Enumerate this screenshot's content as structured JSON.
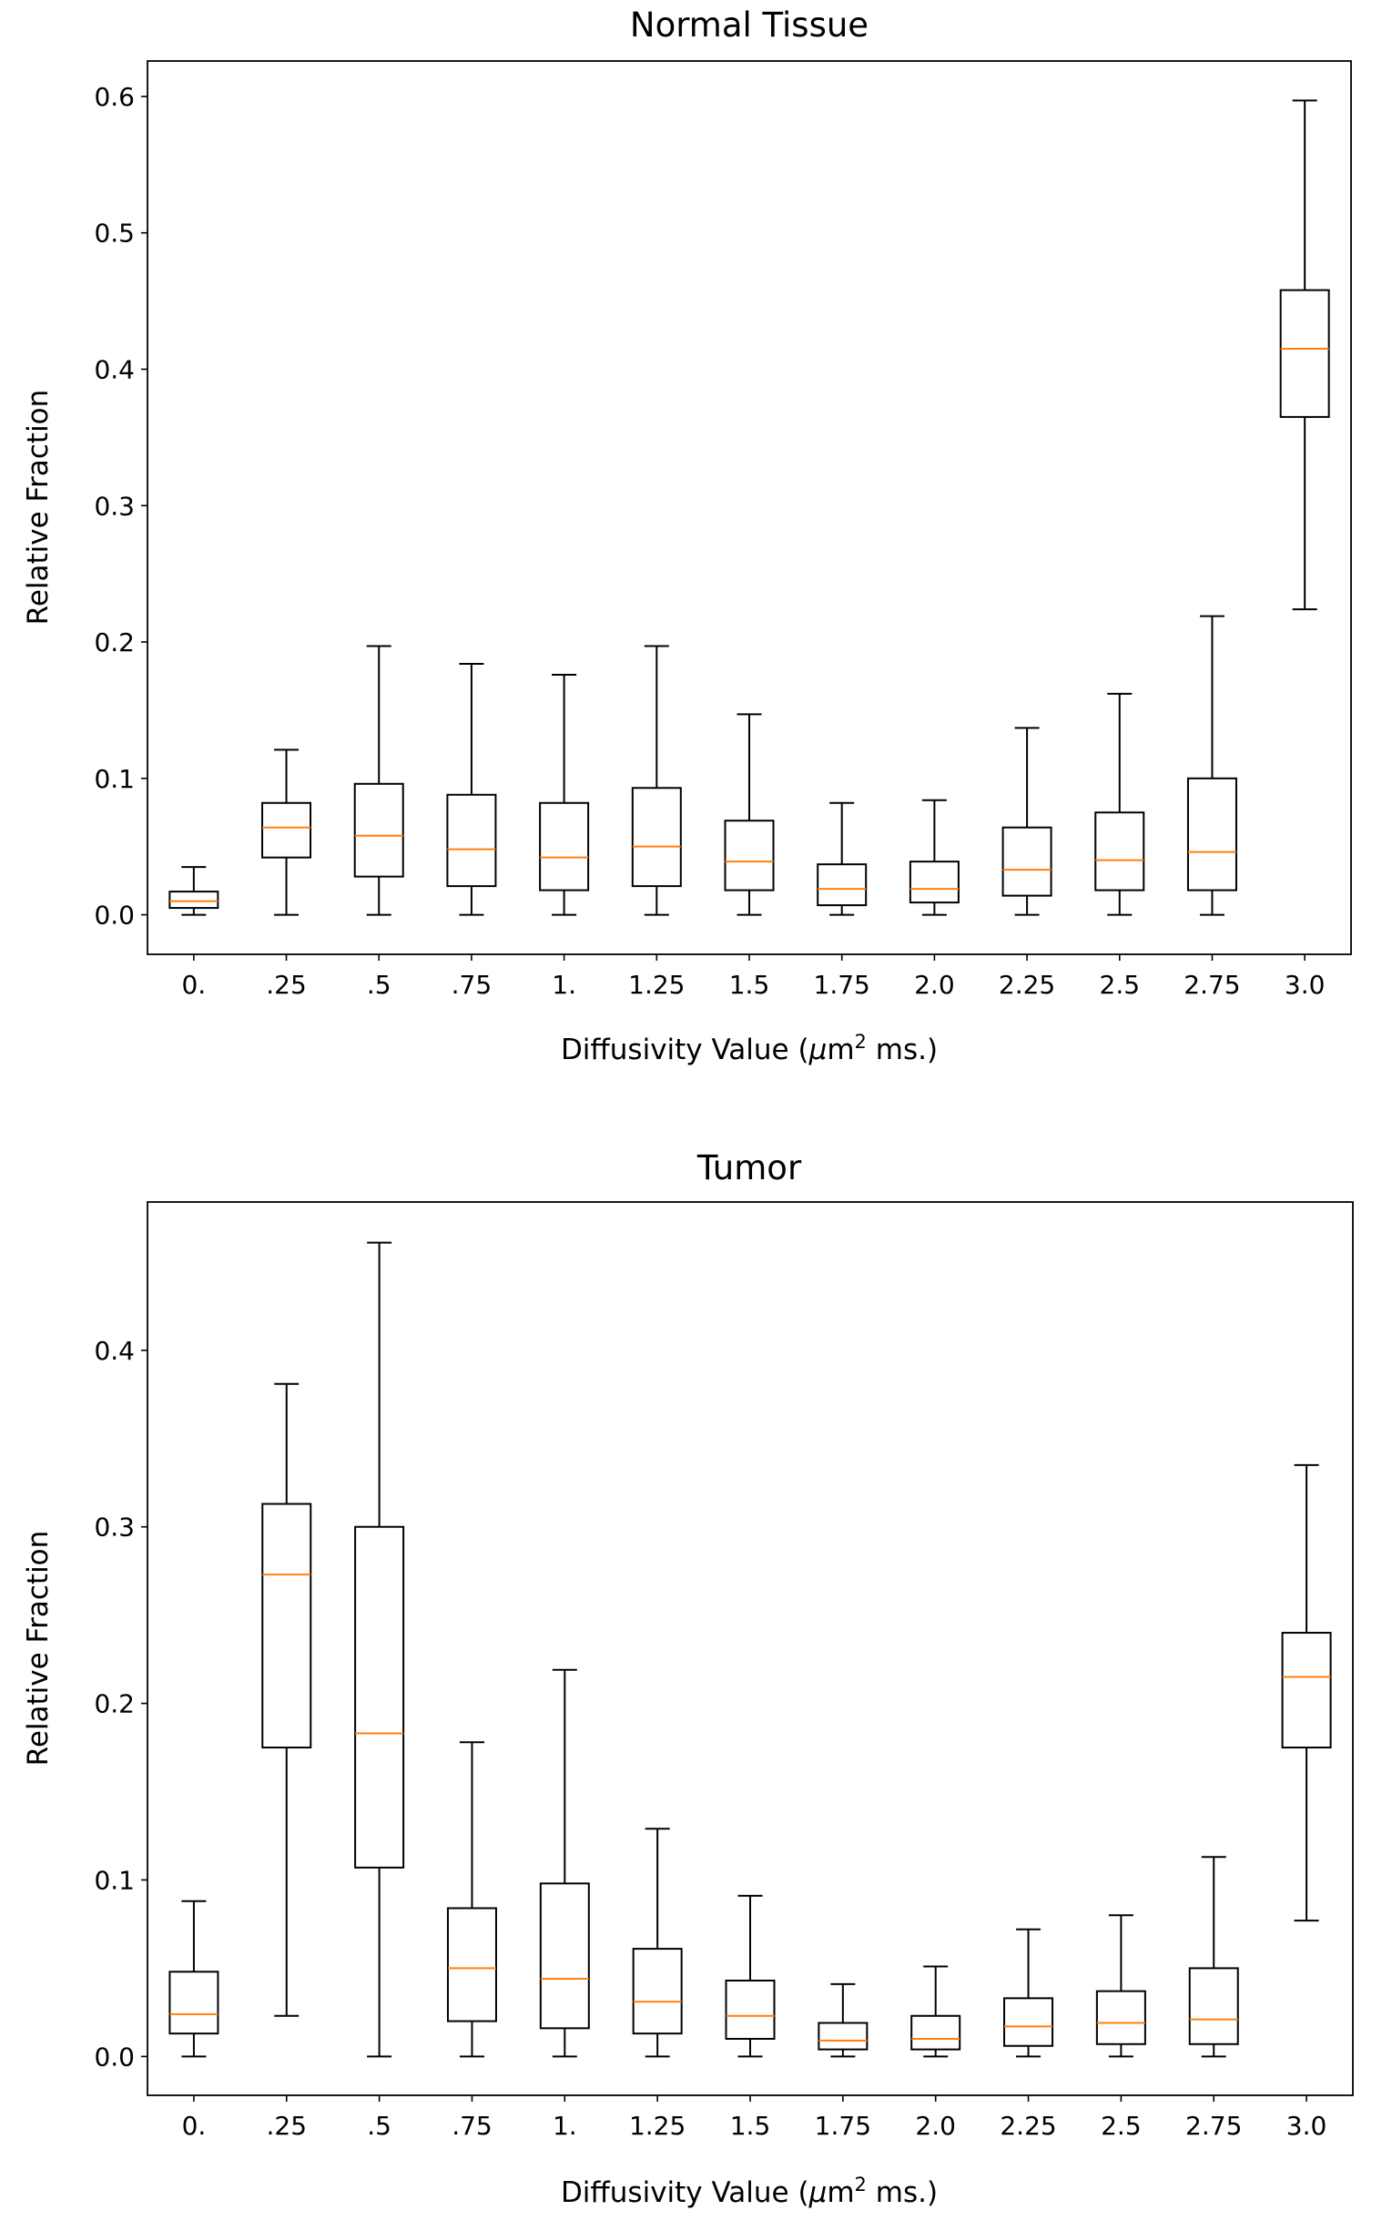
{
  "chart_data": [
    {
      "type": "box",
      "title": "Normal Tissue",
      "xlabel": "Diffusivity Value (μm² ms.)",
      "xlabel_parts": {
        "pre": "Diffusivity Value (",
        "mu": "μ",
        "m": "m",
        "sup": "2",
        "post": " ms.)"
      },
      "ylabel": "Relative Fraction",
      "ylim": [
        -0.029,
        0.626
      ],
      "yticks": [
        "0.0",
        "0.1",
        "0.2",
        "0.3",
        "0.4",
        "0.5",
        "0.6"
      ],
      "ytick_values": [
        0,
        0.1,
        0.2,
        0.3,
        0.4,
        0.5,
        0.6
      ],
      "categories": [
        "0.",
        ".25",
        ".5",
        ".75",
        "1.",
        "1.25",
        "1.5",
        "1.75",
        "2.0",
        "2.25",
        "2.5",
        "2.75",
        "3.0"
      ],
      "boxes": [
        {
          "whislo": 0,
          "q1": 0.005,
          "med": 0.01,
          "q3": 0.017,
          "whishi": 0.035
        },
        {
          "whislo": 0,
          "q1": 0.042,
          "med": 0.064,
          "q3": 0.082,
          "whishi": 0.121
        },
        {
          "whislo": 0,
          "q1": 0.028,
          "med": 0.058,
          "q3": 0.096,
          "whishi": 0.197
        },
        {
          "whislo": 0,
          "q1": 0.021,
          "med": 0.048,
          "q3": 0.088,
          "whishi": 0.184
        },
        {
          "whislo": 0,
          "q1": 0.018,
          "med": 0.042,
          "q3": 0.082,
          "whishi": 0.176
        },
        {
          "whislo": 0,
          "q1": 0.021,
          "med": 0.05,
          "q3": 0.093,
          "whishi": 0.197
        },
        {
          "whislo": 0,
          "q1": 0.018,
          "med": 0.039,
          "q3": 0.069,
          "whishi": 0.147
        },
        {
          "whislo": 0,
          "q1": 0.007,
          "med": 0.019,
          "q3": 0.037,
          "whishi": 0.082
        },
        {
          "whislo": 0,
          "q1": 0.009,
          "med": 0.019,
          "q3": 0.039,
          "whishi": 0.084
        },
        {
          "whislo": 0,
          "q1": 0.014,
          "med": 0.033,
          "q3": 0.064,
          "whishi": 0.137
        },
        {
          "whislo": 0,
          "q1": 0.018,
          "med": 0.04,
          "q3": 0.075,
          "whishi": 0.162
        },
        {
          "whislo": 0,
          "q1": 0.018,
          "med": 0.046,
          "q3": 0.1,
          "whishi": 0.219
        },
        {
          "whislo": 0.224,
          "q1": 0.365,
          "med": 0.415,
          "q3": 0.458,
          "whishi": 0.597
        }
      ],
      "grid": false,
      "colors": {
        "box": "#000000",
        "median": "#ff7f0e"
      }
    },
    {
      "type": "box",
      "title": "Tumor",
      "xlabel": "Diffusivity Value (μm² ms.)",
      "xlabel_parts": {
        "pre": "Diffusivity Value (",
        "mu": "μ",
        "m": "m",
        "sup": "2",
        "post": " ms.)"
      },
      "ylabel": "Relative Fraction",
      "ylim": [
        -0.022,
        0.484
      ],
      "yticks": [
        "0.0",
        "0.1",
        "0.2",
        "0.3",
        "0.4"
      ],
      "ytick_values": [
        0,
        0.1,
        0.2,
        0.3,
        0.4
      ],
      "categories": [
        "0.",
        ".25",
        ".5",
        ".75",
        "1.",
        "1.25",
        "1.5",
        "1.75",
        "2.0",
        "2.25",
        "2.5",
        "2.75",
        "3.0"
      ],
      "boxes": [
        {
          "whislo": 0,
          "q1": 0.013,
          "med": 0.024,
          "q3": 0.048,
          "whishi": 0.088
        },
        {
          "whislo": 0.023,
          "q1": 0.175,
          "med": 0.273,
          "q3": 0.313,
          "whishi": 0.381
        },
        {
          "whislo": 0,
          "q1": 0.107,
          "med": 0.183,
          "q3": 0.3,
          "whishi": 0.461
        },
        {
          "whislo": 0,
          "q1": 0.02,
          "med": 0.05,
          "q3": 0.084,
          "whishi": 0.178
        },
        {
          "whislo": 0,
          "q1": 0.016,
          "med": 0.044,
          "q3": 0.098,
          "whishi": 0.219
        },
        {
          "whislo": 0,
          "q1": 0.013,
          "med": 0.031,
          "q3": 0.061,
          "whishi": 0.129
        },
        {
          "whislo": 0,
          "q1": 0.01,
          "med": 0.023,
          "q3": 0.043,
          "whishi": 0.091
        },
        {
          "whislo": 0,
          "q1": 0.004,
          "med": 0.009,
          "q3": 0.019,
          "whishi": 0.041
        },
        {
          "whislo": 0,
          "q1": 0.004,
          "med": 0.01,
          "q3": 0.023,
          "whishi": 0.051
        },
        {
          "whislo": 0,
          "q1": 0.006,
          "med": 0.017,
          "q3": 0.033,
          "whishi": 0.072
        },
        {
          "whislo": 0,
          "q1": 0.007,
          "med": 0.019,
          "q3": 0.037,
          "whishi": 0.08
        },
        {
          "whislo": 0,
          "q1": 0.007,
          "med": 0.021,
          "q3": 0.05,
          "whishi": 0.113
        },
        {
          "whislo": 0.077,
          "q1": 0.175,
          "med": 0.215,
          "q3": 0.24,
          "whishi": 0.335
        }
      ],
      "grid": false,
      "colors": {
        "box": "#000000",
        "median": "#ff7f0e"
      }
    }
  ]
}
